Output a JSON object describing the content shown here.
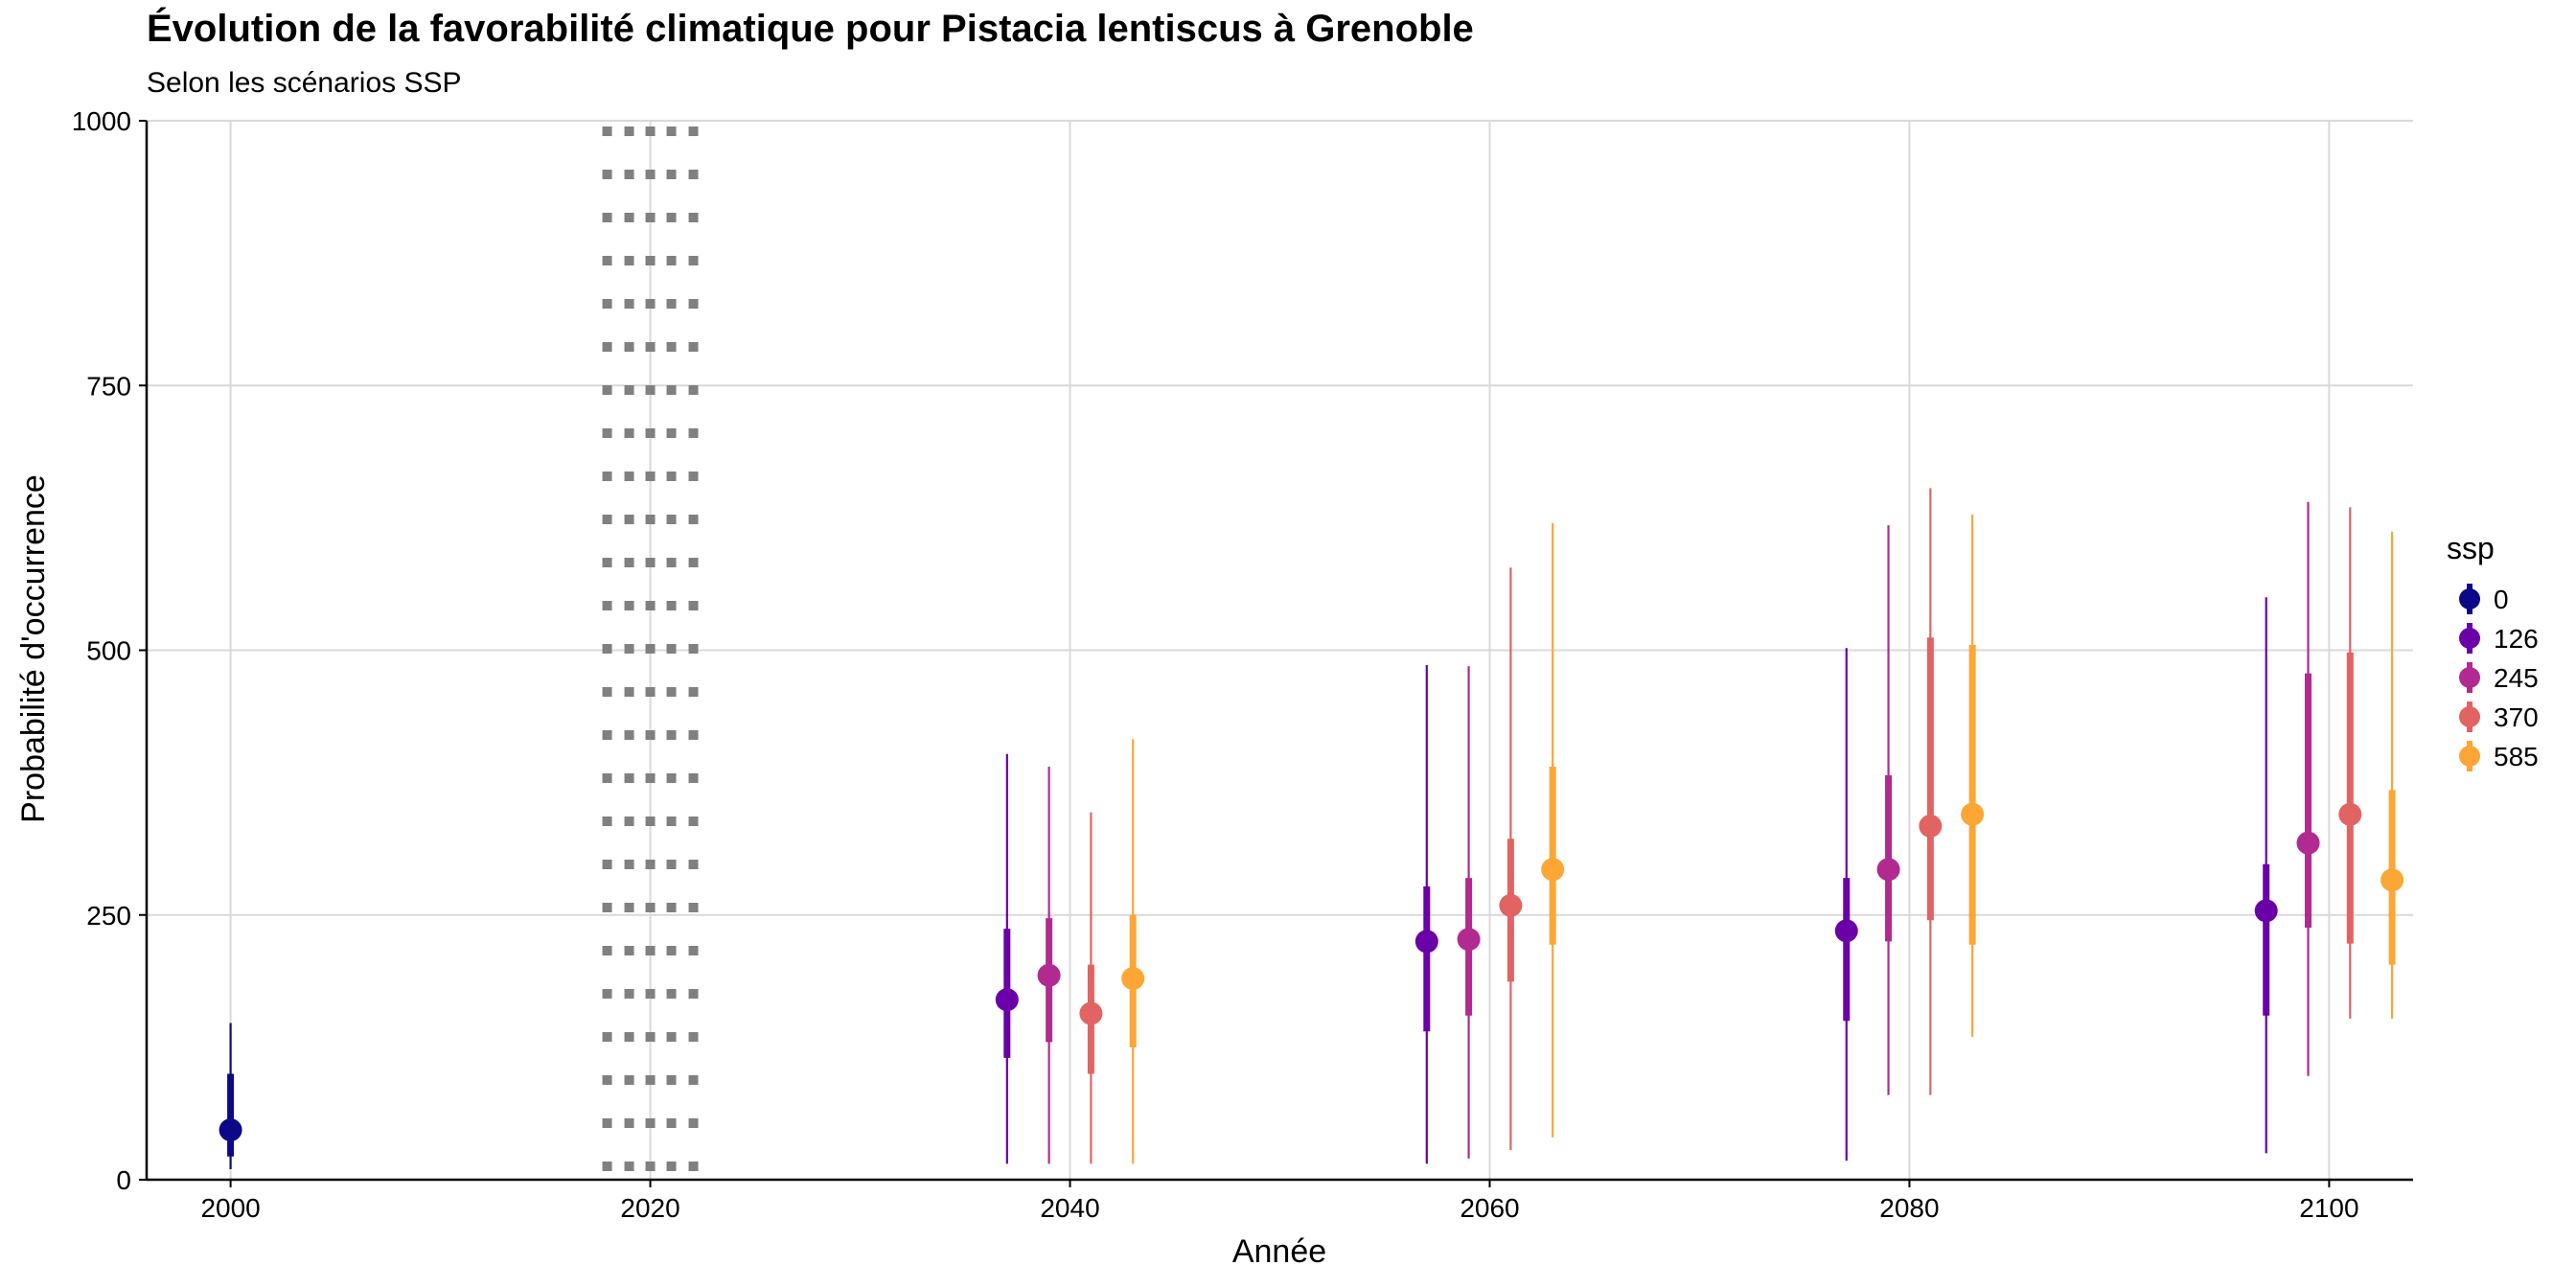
{
  "chart_data": {
    "type": "pointrange",
    "title": "Évolution de la favorabilité climatique pour Pistacia lentiscus à Grenoble",
    "subtitle": "Selon les scénarios SSP",
    "xlabel": "Année",
    "ylabel": "Probabilité d'occurrence",
    "xlim": [
      1996,
      2104
    ],
    "ylim": [
      0,
      1000
    ],
    "x_ticks": [
      2000,
      2020,
      2040,
      2060,
      2080,
      2100
    ],
    "x_tick_labels": [
      "2000",
      "2020",
      "2040",
      "2060",
      "2080",
      "2100"
    ],
    "y_ticks": [
      0,
      250,
      500,
      750,
      1000
    ],
    "y_tick_labels": [
      "0",
      "250",
      "500",
      "750",
      "1000"
    ],
    "grid": true,
    "reference_line": {
      "x": 2020,
      "style": "dotted"
    },
    "legend": {
      "title": "ssp",
      "position": "right",
      "entries": [
        {
          "label": "0",
          "color": "#0d0887"
        },
        {
          "label": "126",
          "color": "#6a00a8"
        },
        {
          "label": "245",
          "color": "#b12a90"
        },
        {
          "label": "370",
          "color": "#e16462"
        },
        {
          "label": "585",
          "color": "#fca636"
        }
      ]
    },
    "series": [
      {
        "name": "0",
        "color": "#0d0887",
        "points": [
          {
            "x": 2000,
            "y": 47,
            "inner": [
              22,
              100
            ],
            "outer": [
              10,
              148
            ]
          }
        ]
      },
      {
        "name": "126",
        "color": "#6a00a8",
        "points": [
          {
            "x": 2037,
            "y": 170,
            "inner": [
              115,
              237
            ],
            "outer": [
              15,
              402
            ]
          },
          {
            "x": 2057,
            "y": 225,
            "inner": [
              140,
              277
            ],
            "outer": [
              15,
              486
            ]
          },
          {
            "x": 2077,
            "y": 235,
            "inner": [
              150,
              285
            ],
            "outer": [
              18,
              502
            ]
          },
          {
            "x": 2097,
            "y": 254,
            "inner": [
              155,
              298
            ],
            "outer": [
              25,
              550
            ]
          }
        ]
      },
      {
        "name": "245",
        "color": "#b12a90",
        "points": [
          {
            "x": 2039,
            "y": 193,
            "inner": [
              130,
              247
            ],
            "outer": [
              15,
              390
            ]
          },
          {
            "x": 2059,
            "y": 227,
            "inner": [
              155,
              285
            ],
            "outer": [
              20,
              485
            ]
          },
          {
            "x": 2079,
            "y": 293,
            "inner": [
              225,
              382
            ],
            "outer": [
              80,
              618
            ]
          },
          {
            "x": 2099,
            "y": 318,
            "inner": [
              238,
              478
            ],
            "outer": [
              98,
              640
            ]
          }
        ]
      },
      {
        "name": "370",
        "color": "#e16462",
        "points": [
          {
            "x": 2041,
            "y": 157,
            "inner": [
              100,
              203
            ],
            "outer": [
              15,
              347
            ]
          },
          {
            "x": 2061,
            "y": 259,
            "inner": [
              187,
              322
            ],
            "outer": [
              28,
              578
            ]
          },
          {
            "x": 2081,
            "y": 334,
            "inner": [
              245,
              512
            ],
            "outer": [
              80,
              653
            ]
          },
          {
            "x": 2101,
            "y": 345,
            "inner": [
              223,
              498
            ],
            "outer": [
              152,
              635
            ]
          }
        ]
      },
      {
        "name": "585",
        "color": "#fca636",
        "points": [
          {
            "x": 2043,
            "y": 190,
            "inner": [
              125,
              250
            ],
            "outer": [
              15,
              416
            ]
          },
          {
            "x": 2063,
            "y": 293,
            "inner": [
              222,
              390
            ],
            "outer": [
              40,
              620
            ]
          },
          {
            "x": 2083,
            "y": 345,
            "inner": [
              222,
              505
            ],
            "outer": [
              135,
              628
            ]
          },
          {
            "x": 2103,
            "y": 283,
            "inner": [
              203,
              368
            ],
            "outer": [
              152,
              612
            ]
          }
        ]
      }
    ]
  }
}
